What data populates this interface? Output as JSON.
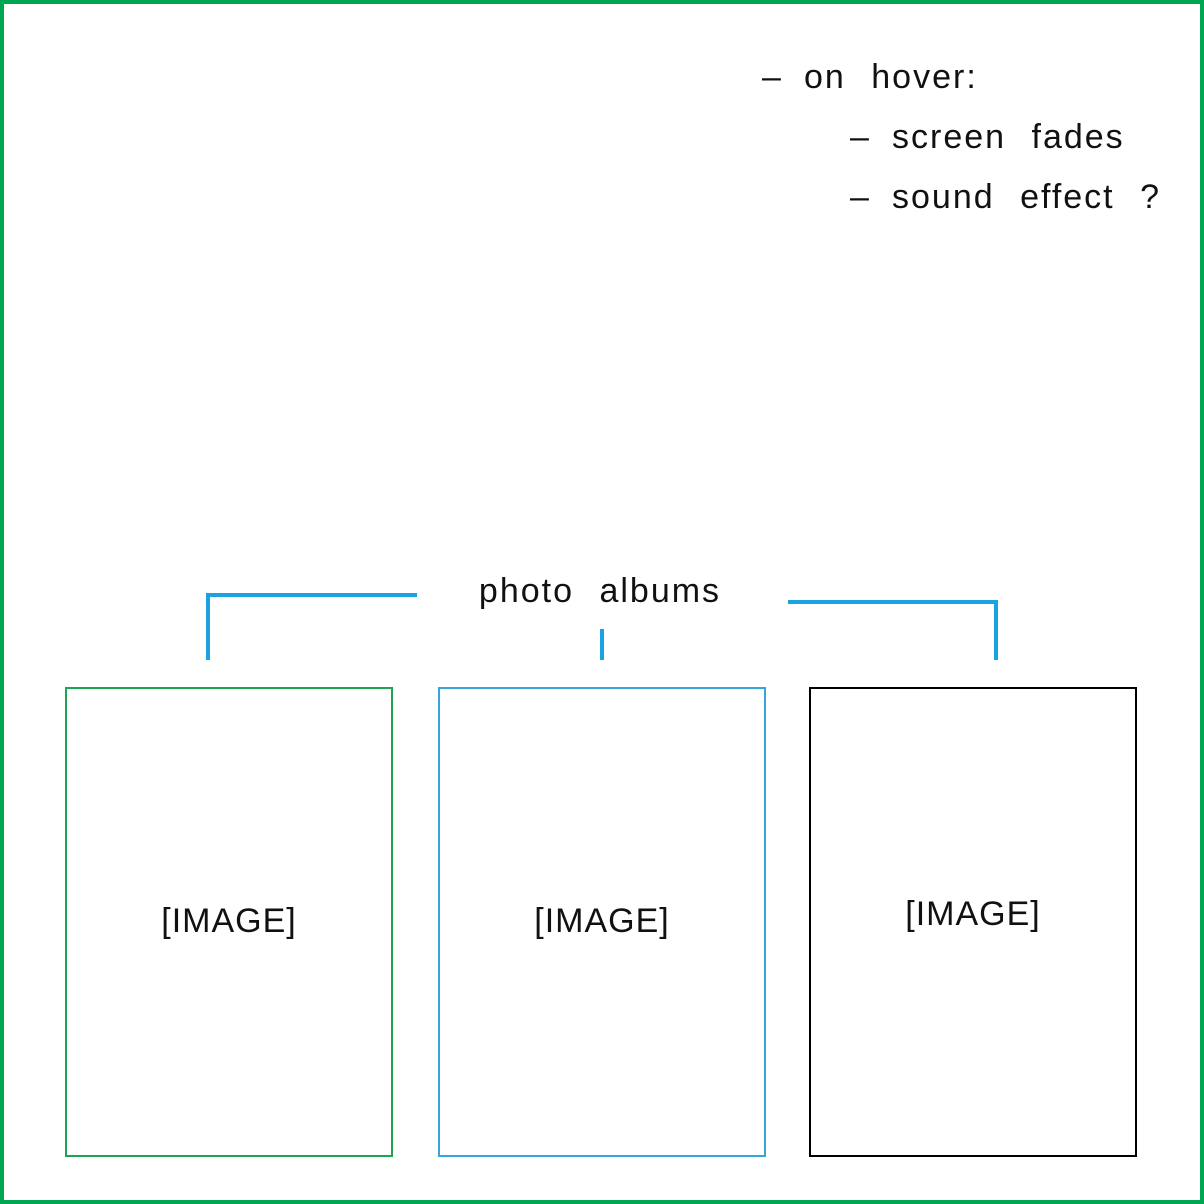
{
  "notes": {
    "hover_title": "on hover:",
    "items": [
      "screen fades",
      "sound effect ?"
    ],
    "bullet": "–"
  },
  "albums": {
    "label": "photo albums",
    "cards": [
      {
        "placeholder": "[IMAGE]",
        "border_color": "#1aa552"
      },
      {
        "placeholder": "[IMAGE]",
        "border_color": "#35a6d9"
      },
      {
        "placeholder": "[IMAGE]",
        "border_color": "#000000"
      }
    ],
    "connector_color": "#1aa3e0"
  },
  "frame": {
    "border_color": "#00a651"
  }
}
